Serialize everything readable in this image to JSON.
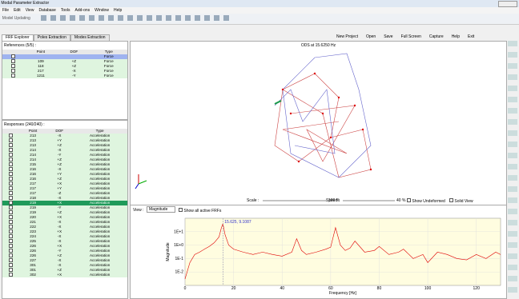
{
  "window": {
    "title": "Modal Parameter Extractor"
  },
  "menu": [
    "File",
    "Edit",
    "View",
    "Database",
    "Tools",
    "Add-ons",
    "Window",
    "Help"
  ],
  "toolbar": {
    "model_updating": "Model Updating",
    "right": [
      "New Project",
      "Open",
      "Save",
      "Full Screen",
      "Capture",
      "Help",
      "Exit"
    ]
  },
  "tabs": [
    "FRF Explorer",
    "Poles Extraction",
    "Modes Extraction"
  ],
  "references": {
    "title": "References (5/5) :",
    "columns": [
      "Point",
      "DOF",
      "Type"
    ],
    "rows": [
      {
        "type": "Force",
        "selected": true
      },
      {
        "point": "109",
        "dof": "+Z",
        "type": "Force"
      },
      {
        "point": "118",
        "dof": "+Z",
        "type": "Force"
      },
      {
        "point": "217",
        "dof": "-X",
        "type": "Force"
      },
      {
        "point": "1211",
        "dof": "-Y",
        "type": "Force"
      }
    ]
  },
  "responses": {
    "title": "Responses (240/240) :",
    "columns": [
      "Point",
      "DOF",
      "Type"
    ],
    "rows": [
      {
        "point": "213",
        "dof": "-X",
        "type": "Acceleration"
      },
      {
        "point": "213",
        "dof": "+Y",
        "type": "Acceleration"
      },
      {
        "point": "213",
        "dof": "+Z",
        "type": "Acceleration"
      },
      {
        "point": "214",
        "dof": "-X",
        "type": "Acceleration"
      },
      {
        "point": "214",
        "dof": "-Y",
        "type": "Acceleration"
      },
      {
        "point": "214",
        "dof": "+Z",
        "type": "Acceleration"
      },
      {
        "point": "215",
        "dof": "+Z",
        "type": "Acceleration"
      },
      {
        "point": "216",
        "dof": "-X",
        "type": "Acceleration"
      },
      {
        "point": "216",
        "dof": "+Y",
        "type": "Acceleration"
      },
      {
        "point": "216",
        "dof": "+Z",
        "type": "Acceleration"
      },
      {
        "point": "217",
        "dof": "+X",
        "type": "Acceleration"
      },
      {
        "point": "217",
        "dof": "+Y",
        "type": "Acceleration"
      },
      {
        "point": "217",
        "dof": "-Z",
        "type": "Acceleration"
      },
      {
        "point": "218",
        "dof": "-X",
        "type": "Acceleration"
      },
      {
        "point": "219",
        "dof": "+X",
        "type": "Acceleration",
        "selected": true
      },
      {
        "point": "219",
        "dof": "-Y",
        "type": "Acceleration"
      },
      {
        "point": "219",
        "dof": "+Z",
        "type": "Acceleration"
      },
      {
        "point": "220",
        "dof": "+X",
        "type": "Acceleration"
      },
      {
        "point": "221",
        "dof": "-X",
        "type": "Acceleration"
      },
      {
        "point": "222",
        "dof": "-X",
        "type": "Acceleration"
      },
      {
        "point": "223",
        "dof": "+X",
        "type": "Acceleration"
      },
      {
        "point": "224",
        "dof": "-X",
        "type": "Acceleration"
      },
      {
        "point": "225",
        "dof": "-X",
        "type": "Acceleration"
      },
      {
        "point": "226",
        "dof": "+X",
        "type": "Acceleration"
      },
      {
        "point": "226",
        "dof": "-Y",
        "type": "Acceleration"
      },
      {
        "point": "226",
        "dof": "+Z",
        "type": "Acceleration"
      },
      {
        "point": "227",
        "dof": "-X",
        "type": "Acceleration"
      },
      {
        "point": "301",
        "dof": "-X",
        "type": "Acceleration"
      },
      {
        "point": "301",
        "dof": "+Z",
        "type": "Acceleration"
      },
      {
        "point": "302",
        "dof": "+X",
        "type": "Acceleration"
      }
    ]
  },
  "viewer": {
    "title": "ODS at 15.6250 Hz",
    "scale_label": "Scale :",
    "scale_value": "100 %",
    "speed_label": "Speed :",
    "speed_value": "40 %",
    "show_undeformed": "Show Undeformed",
    "solid_view": "Solid View"
  },
  "frf_plot": {
    "view_label": "View :",
    "view_select": "Magnitude",
    "show_all": "Show all active FRFs",
    "cursor_label": "15.625, 9.1087",
    "xlabel": "Frequency [Hz]",
    "ylabel": "Magnitude",
    "log_y": true,
    "xlim": [
      0,
      130
    ],
    "xticks": [
      0,
      20,
      40,
      60,
      80,
      100,
      120
    ],
    "ylim": [
      0.001,
      100
    ],
    "yticks": [
      {
        "value": 0.01,
        "label": "1E-2"
      },
      {
        "value": 0.1,
        "label": "1E-1"
      },
      {
        "value": 1,
        "label": "1E+0"
      },
      {
        "value": 10,
        "label": "1E+1"
      }
    ],
    "x": [
      0,
      2,
      4,
      6,
      8,
      10,
      12,
      14,
      15,
      15.6,
      16.5,
      18,
      20,
      24,
      28,
      32,
      36,
      40,
      44,
      46,
      48,
      50,
      54,
      58,
      60,
      62,
      64,
      66,
      68,
      70,
      74,
      78,
      80,
      84,
      88,
      90,
      94,
      98,
      100,
      104,
      108,
      112,
      116,
      120,
      124,
      128,
      130
    ],
    "series": [
      {
        "name": "FRF",
        "color": "#e00000",
        "values": [
          0.003,
          0.05,
          0.2,
          0.3,
          0.5,
          0.8,
          1.5,
          4,
          20,
          40,
          6,
          1,
          0.5,
          0.3,
          0.2,
          0.3,
          0.2,
          0.15,
          0.3,
          3,
          0.4,
          0.2,
          0.3,
          0.5,
          0.7,
          20,
          1,
          0.4,
          0.6,
          2,
          0.3,
          0.4,
          0.8,
          0.2,
          0.3,
          0.5,
          0.1,
          0.2,
          0.05,
          0.3,
          0.2,
          0.1,
          0.08,
          0.2,
          0.1,
          0.3,
          0.2
        ]
      }
    ]
  }
}
